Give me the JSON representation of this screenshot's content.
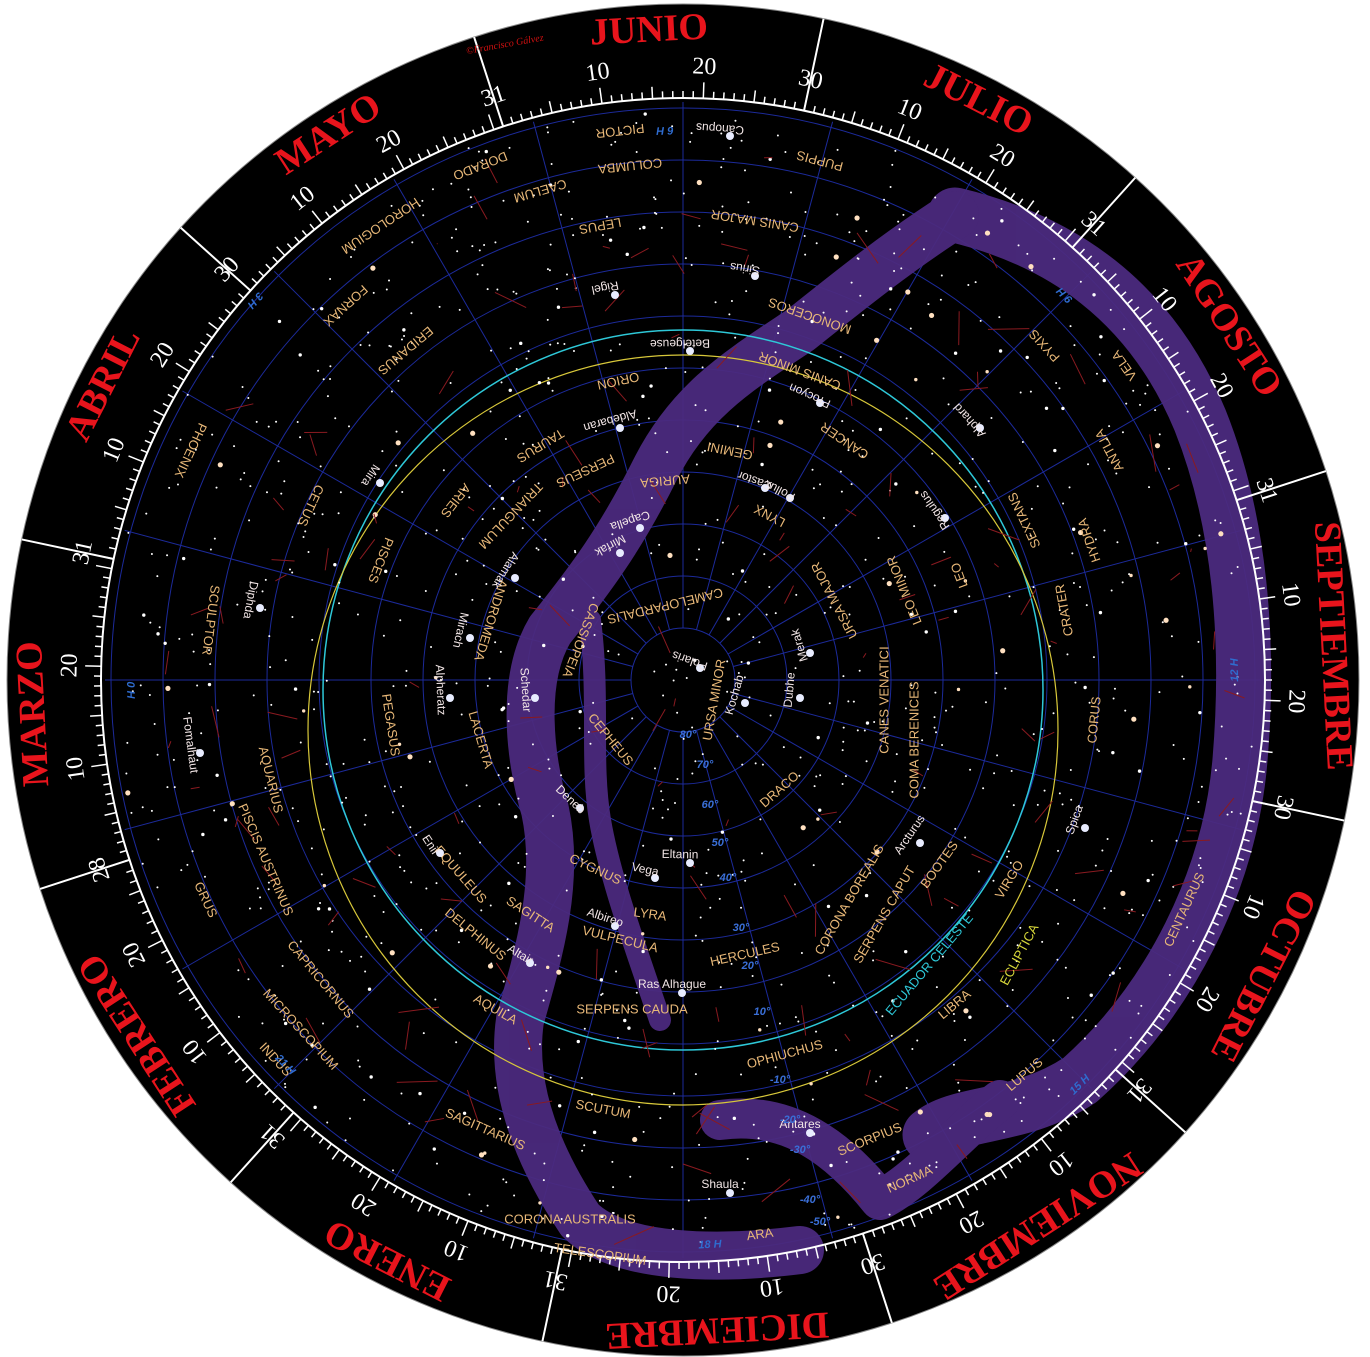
{
  "copyright": "©Francisco Gálvez",
  "months": [
    {
      "name": "ENERO",
      "days": [
        10,
        20,
        31
      ]
    },
    {
      "name": "FEBRERO",
      "days": [
        10,
        20,
        28
      ]
    },
    {
      "name": "MARZO",
      "days": [
        10,
        20,
        31
      ]
    },
    {
      "name": "ABRIL",
      "days": [
        10,
        20,
        30
      ]
    },
    {
      "name": "MAYO",
      "days": [
        10,
        20,
        31
      ]
    },
    {
      "name": "JUNIO",
      "days": [
        10,
        20,
        30
      ]
    },
    {
      "name": "JULIO",
      "days": [
        10,
        20,
        31
      ]
    },
    {
      "name": "AGOSTO",
      "days": [
        10,
        20,
        31
      ]
    },
    {
      "name": "SEPTIEMBRE",
      "days": [
        10,
        20,
        30
      ]
    },
    {
      "name": "OCTUBRE",
      "days": [
        10,
        20,
        31
      ]
    },
    {
      "name": "NOVIEMBRE",
      "days": [
        10,
        20,
        30
      ]
    },
    {
      "name": "DICIEMBRE",
      "days": [
        10,
        20,
        31
      ]
    }
  ],
  "hours": [
    "0 H",
    "3 H",
    "6 H",
    "9 H",
    "12 H",
    "15 H",
    "18 H",
    "21 H"
  ],
  "declinations": [
    "80°",
    "70°",
    "60°",
    "50°",
    "40°",
    "30°",
    "20°",
    "10°",
    "-10°",
    "-20°",
    "-30°",
    "-40°",
    "-50°"
  ],
  "circles": {
    "equator": "ECUADOR CELESTE",
    "ecliptic": "ECLIPTICA"
  },
  "constellations": [
    "PICTOR",
    "COLUMBA",
    "DORADO",
    "CAELUM",
    "HOROLOGIUM",
    "LEPUS",
    "CANIS MAJOR",
    "PUPPIS",
    "FORNAX",
    "ERIDANUS",
    "MONOCEROS",
    "ORION",
    "CANIS MINOR",
    "TAURUS",
    "CANCER",
    "GEMINI",
    "PYXIS",
    "VELA",
    "ANTLIA",
    "PERSEUS",
    "AURIGA",
    "LYNX",
    "PHOENIX",
    "CETUS",
    "ARIES",
    "TRIANGULUM",
    "SEXTANS",
    "HYDRA",
    "LEO",
    "LEO MINOR",
    "URSA MAJOR",
    "CAMELOPARDALIS",
    "PISCES",
    "SCULPTOR",
    "ANDROMEDA",
    "CASSIOPEIA",
    "CRATER",
    "URSA MINOR",
    "CANES VENATICI",
    "PEGASUS",
    "LACERTA",
    "CEPHEUS",
    "CORUS",
    "COMA BERENICES",
    "AQUARIUS",
    "DRACO",
    "PISCIS AUSTRINUS",
    "EQUULEUS",
    "CYGNUS",
    "BOOTES",
    "VIRGO",
    "GRUS",
    "LYRA",
    "SAGITTA",
    "DELPHINUS",
    "CORONA BOREALIS",
    "SERPENS CAPUT",
    "VULPECULA",
    "CAPRICORNUS",
    "HERCULES",
    "CENTAURUS",
    "SERPENS CAUDA",
    "AQUILA",
    "MICROSCOPIUM",
    "LIBRA",
    "INDUS",
    "OPHIUCHUS",
    "LUPUS",
    "SAGITTARIUS",
    "SCUTUM",
    "SCORPIUS",
    "NORMA",
    "CORONA AUSTRALIS",
    "ARA",
    "TELESCOPIUM"
  ],
  "stars": [
    "Canopus",
    "Sirius",
    "Rigel",
    "Betelgeuse",
    "Procyon",
    "Aldebaran",
    "Alphard",
    "Castor",
    "Pollux",
    "Capella",
    "Mirfak",
    "Mira",
    "Alamak",
    "Regulus",
    "Diphda",
    "Mirach",
    "Merak",
    "Polaris",
    "Kochab",
    "Dubhe",
    "Alpheratz",
    "Schedar",
    "Fomalhaut",
    "Deneb",
    "Enif",
    "Eltanin",
    "Vega",
    "Arcturus",
    "Spica",
    "Albireo",
    "Altair",
    "Ras Alhague",
    "Antares",
    "Shaula"
  ]
}
